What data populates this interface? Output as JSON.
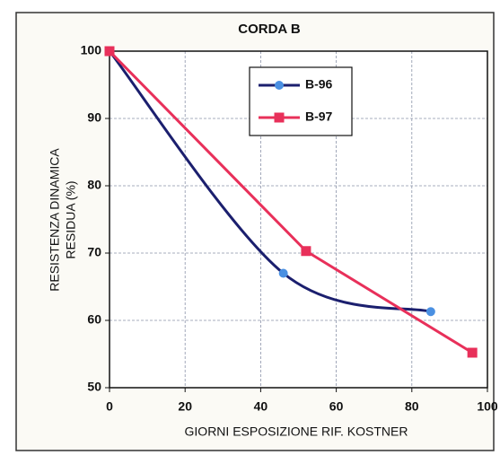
{
  "chart_data": {
    "type": "line",
    "title": "CORDA B",
    "xlabel": "GIORNI ESPOSIZIONE RIF. KOSTNER",
    "ylabel": [
      "RESISTENZA  DINAMICA",
      "RESIDUA   (%)"
    ],
    "xlim": [
      0,
      100
    ],
    "xticks": [
      0,
      20,
      40,
      60,
      80,
      100
    ],
    "ylim": [
      50,
      100
    ],
    "yticks": [
      50,
      60,
      70,
      80,
      90,
      100
    ],
    "grid": true,
    "legend": "upper center",
    "series": [
      {
        "name": "B-96",
        "color": "#1b1f6e",
        "marker_color": "#4a90e2",
        "marker": "circle",
        "smooth": true,
        "x": [
          0,
          46,
          85
        ],
        "values": [
          100,
          67,
          61.3
        ]
      },
      {
        "name": "B-97",
        "color": "#e8305a",
        "marker_color": "#e8305a",
        "marker": "square",
        "smooth": false,
        "x": [
          0,
          52,
          96
        ],
        "values": [
          100,
          70.3,
          55.2
        ]
      }
    ]
  }
}
